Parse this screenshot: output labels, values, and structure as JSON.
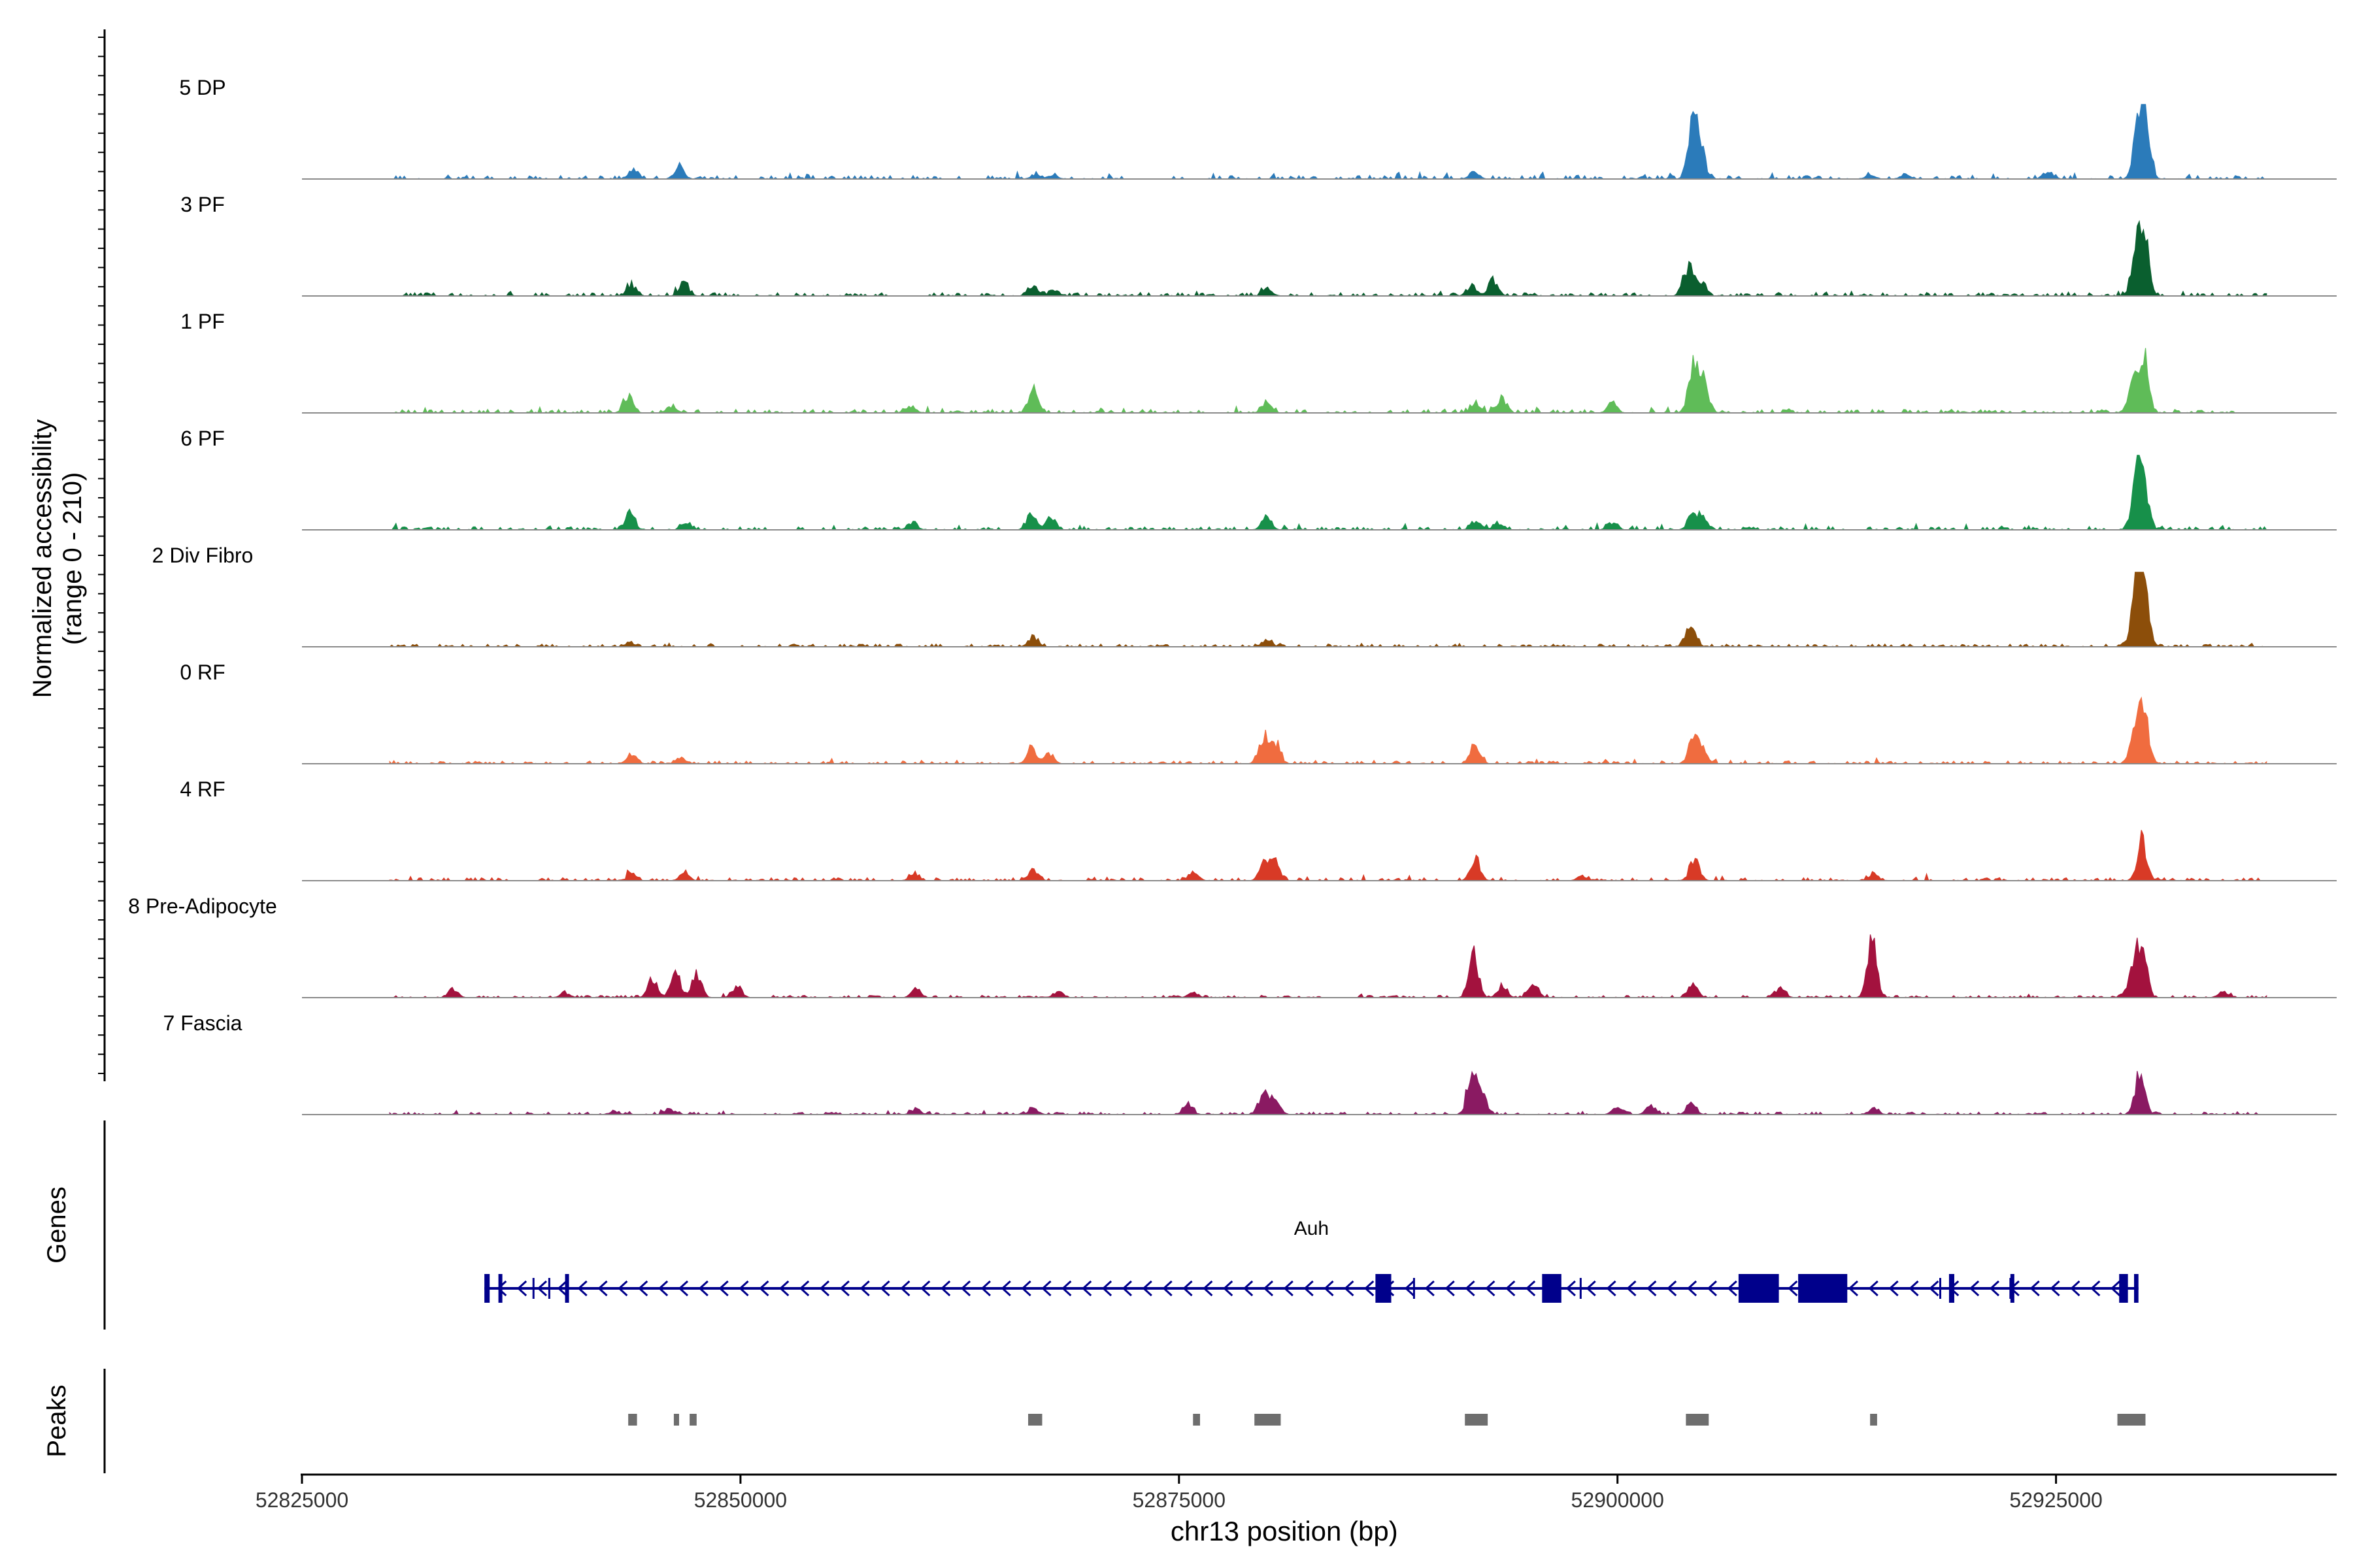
{
  "chart_data": {
    "type": "area",
    "title": "",
    "ylabel_accessibility": "Normalized accessibility",
    "ylabel_range": "(range 0 - 210)",
    "yrange": [
      0,
      210
    ],
    "xlabel": "chr13 position (bp)",
    "xlim": [
      52825000,
      52941000
    ],
    "xticks": [
      {
        "value": 52825000,
        "label": "52825000"
      },
      {
        "value": 52850000,
        "label": "52850000"
      },
      {
        "value": 52875000,
        "label": "52875000"
      },
      {
        "value": 52900000,
        "label": "52900000"
      },
      {
        "value": 52925000,
        "label": "52925000"
      }
    ],
    "signal_range": [
      52830000,
      52937000
    ],
    "tracks": [
      {
        "name": "5 DP",
        "color": "#2b7bba",
        "baseline": 0.25,
        "peaks": [
          [
            52843900,
            0.18
          ],
          [
            52846500,
            0.22
          ],
          [
            52866800,
            0.08
          ],
          [
            52867800,
            0.07
          ],
          [
            52891800,
            0.12
          ],
          [
            52904300,
            0.95
          ],
          [
            52904700,
            0.55
          ],
          [
            52914400,
            0.06
          ],
          [
            52916400,
            0.08
          ],
          [
            52924600,
            0.12
          ],
          [
            52929700,
            0.9
          ],
          [
            52930100,
            1.0
          ]
        ]
      },
      {
        "name": "3 PF",
        "color": "#0a5f2f",
        "baseline": 0.22,
        "peaks": [
          [
            52843800,
            0.18
          ],
          [
            52846800,
            0.2
          ],
          [
            52866800,
            0.14
          ],
          [
            52867900,
            0.1
          ],
          [
            52880100,
            0.1
          ],
          [
            52891700,
            0.16
          ],
          [
            52892900,
            0.28
          ],
          [
            52904000,
            0.5
          ],
          [
            52904700,
            0.28
          ],
          [
            52929600,
            0.85
          ],
          [
            52930000,
            1.0
          ]
        ]
      },
      {
        "name": "1 PF",
        "color": "#5fbc58",
        "baseline": 0.25,
        "peaks": [
          [
            52843600,
            0.3
          ],
          [
            52846100,
            0.12
          ],
          [
            52859700,
            0.12
          ],
          [
            52866700,
            0.38
          ],
          [
            52880000,
            0.2
          ],
          [
            52891900,
            0.18
          ],
          [
            52893400,
            0.25
          ],
          [
            52899700,
            0.16
          ],
          [
            52904300,
            0.78
          ],
          [
            52904900,
            0.6
          ],
          [
            52929400,
            0.6
          ],
          [
            52930000,
            0.95
          ]
        ]
      },
      {
        "name": "6 PF",
        "color": "#17904a",
        "baseline": 0.2,
        "peaks": [
          [
            52843700,
            0.3
          ],
          [
            52846900,
            0.12
          ],
          [
            52859800,
            0.12
          ],
          [
            52866600,
            0.28
          ],
          [
            52867700,
            0.22
          ],
          [
            52880000,
            0.2
          ],
          [
            52891900,
            0.16
          ],
          [
            52893200,
            0.12
          ],
          [
            52899700,
            0.12
          ],
          [
            52904300,
            0.32
          ],
          [
            52904900,
            0.2
          ],
          [
            52929600,
            0.9
          ],
          [
            52930000,
            0.75
          ]
        ]
      },
      {
        "name": "2 Div Fibro",
        "color": "#8c4e0a",
        "baseline": 0.15,
        "peaks": [
          [
            52843700,
            0.08
          ],
          [
            52866700,
            0.18
          ],
          [
            52880000,
            0.12
          ],
          [
            52904200,
            0.4
          ],
          [
            52929500,
            0.65
          ],
          [
            52929800,
            1.0
          ],
          [
            52930100,
            0.6
          ]
        ]
      },
      {
        "name": "0 RF",
        "color": "#f06c3f",
        "baseline": 0.15,
        "peaks": [
          [
            52843800,
            0.16
          ],
          [
            52846600,
            0.1
          ],
          [
            52866600,
            0.28
          ],
          [
            52867600,
            0.18
          ],
          [
            52879800,
            0.42
          ],
          [
            52880500,
            0.38
          ],
          [
            52891900,
            0.35
          ],
          [
            52904300,
            0.4
          ],
          [
            52904800,
            0.3
          ],
          [
            52929500,
            0.5
          ],
          [
            52930000,
            0.95
          ]
        ]
      },
      {
        "name": "4 RF",
        "color": "#d83a26",
        "baseline": 0.18,
        "peaks": [
          [
            52843800,
            0.1
          ],
          [
            52846800,
            0.14
          ],
          [
            52859900,
            0.12
          ],
          [
            52866700,
            0.2
          ],
          [
            52875800,
            0.16
          ],
          [
            52879900,
            0.35
          ],
          [
            52880500,
            0.3
          ],
          [
            52891900,
            0.4
          ],
          [
            52898000,
            0.08
          ],
          [
            52904400,
            0.38
          ],
          [
            52914600,
            0.12
          ],
          [
            52929900,
            0.7
          ]
        ]
      },
      {
        "name": "8 Pre-Adipocyte",
        "color": "#a3123e",
        "baseline": 0.1,
        "peaks": [
          [
            52833600,
            0.14
          ],
          [
            52840000,
            0.08
          ],
          [
            52845000,
            0.35
          ],
          [
            52846300,
            0.42
          ],
          [
            52847500,
            0.4
          ],
          [
            52849800,
            0.2
          ],
          [
            52860000,
            0.15
          ],
          [
            52868100,
            0.1
          ],
          [
            52875800,
            0.08
          ],
          [
            52891800,
            0.72
          ],
          [
            52893400,
            0.2
          ],
          [
            52895200,
            0.28
          ],
          [
            52904300,
            0.22
          ],
          [
            52909300,
            0.15
          ],
          [
            52914500,
            1.0
          ],
          [
            52929400,
            0.55
          ],
          [
            52929900,
            0.9
          ],
          [
            52934500,
            0.1
          ]
        ]
      },
      {
        "name": "7 Fascia",
        "color": "#8a1a62",
        "baseline": 0.12,
        "peaks": [
          [
            52842800,
            0.06
          ],
          [
            52846000,
            0.08
          ],
          [
            52860000,
            0.1
          ],
          [
            52866700,
            0.1
          ],
          [
            52875500,
            0.2
          ],
          [
            52879800,
            0.35
          ],
          [
            52880500,
            0.3
          ],
          [
            52891700,
            0.7
          ],
          [
            52892300,
            0.3
          ],
          [
            52900000,
            0.14
          ],
          [
            52901900,
            0.16
          ],
          [
            52904200,
            0.2
          ],
          [
            52914600,
            0.12
          ],
          [
            52929800,
            0.75
          ]
        ]
      }
    ],
    "gene_track_label": "Genes",
    "gene": {
      "name": "Auh",
      "strand": "-",
      "color": "#00008b",
      "start": 52835400,
      "end": 52929700,
      "exons": [
        [
          52835400,
          52835700
        ],
        [
          52836200,
          52836400
        ],
        [
          52840000,
          52840150
        ],
        [
          52886200,
          52887100
        ],
        [
          52895700,
          52896800
        ],
        [
          52906900,
          52909200
        ],
        [
          52910300,
          52913100
        ],
        [
          52918900,
          52919200
        ],
        [
          52922400,
          52922500
        ],
        [
          52928600,
          52929100
        ],
        [
          52929450,
          52929700
        ]
      ]
    },
    "peaks_track_label": "Peaks",
    "peak_color": "#6e6e6e",
    "peak_regions": [
      [
        52843600,
        52844100
      ],
      [
        52846200,
        52846500
      ],
      [
        52847100,
        52847500
      ],
      [
        52866400,
        52867200
      ],
      [
        52875800,
        52876200
      ],
      [
        52879300,
        52880800
      ],
      [
        52891300,
        52892600
      ],
      [
        52903900,
        52905200
      ],
      [
        52914400,
        52914800
      ],
      [
        52928500,
        52930100
      ]
    ]
  }
}
